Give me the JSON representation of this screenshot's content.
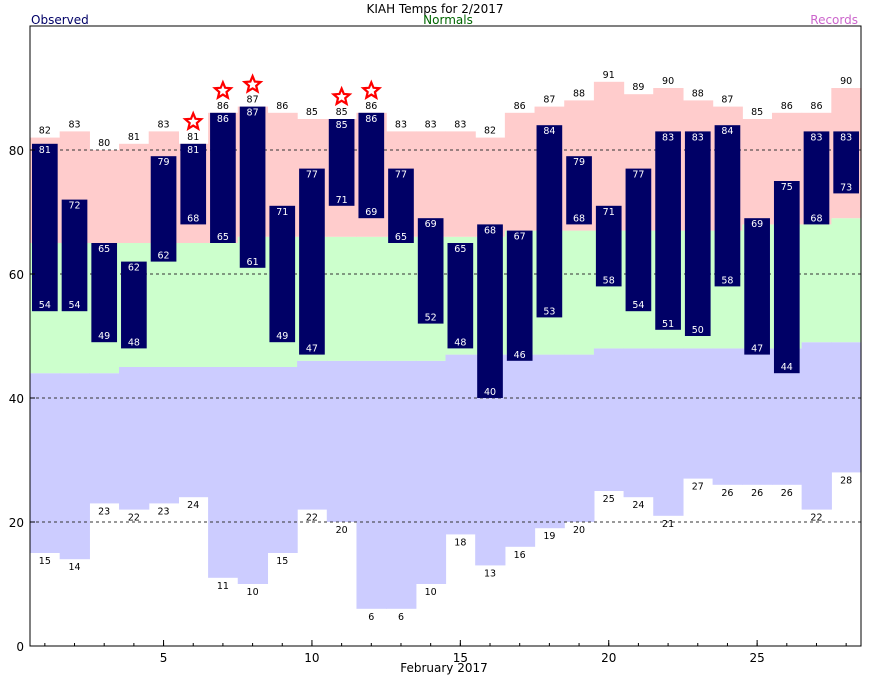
{
  "chart_data": {
    "type": "bar",
    "title": "KIAH Temps for 2/2017",
    "legend": {
      "observed": "Observed",
      "normals": "Normals",
      "records": "Records"
    },
    "xlabel": "February 2017",
    "ylabel": "",
    "xlim": [
      0.5,
      28.5
    ],
    "ylim": [
      0,
      100
    ],
    "x_ticks": [
      5,
      10,
      15,
      20,
      25
    ],
    "y_ticks": [
      0,
      20,
      40,
      60,
      80
    ],
    "gridlines_y": [
      20,
      40,
      60,
      80
    ],
    "colors": {
      "observed": "#000066",
      "normal_band": "#ccffcc",
      "record_high_band": "#ffcccc",
      "record_low_band": "#ccccff",
      "star": "#ff0000",
      "observed_text": "#000066",
      "normals_text": "#006600",
      "records_text": "#cc66cc"
    },
    "days": [
      1,
      2,
      3,
      4,
      5,
      6,
      7,
      8,
      9,
      10,
      11,
      12,
      13,
      14,
      15,
      16,
      17,
      18,
      19,
      20,
      21,
      22,
      23,
      24,
      25,
      26,
      27,
      28
    ],
    "obs_high": [
      81,
      72,
      65,
      62,
      79,
      81,
      86,
      87,
      71,
      77,
      85,
      86,
      77,
      69,
      65,
      68,
      67,
      84,
      79,
      71,
      77,
      83,
      83,
      84,
      69,
      75,
      83,
      83
    ],
    "obs_low": [
      54,
      54,
      49,
      48,
      62,
      68,
      65,
      61,
      49,
      47,
      71,
      69,
      65,
      52,
      48,
      40,
      46,
      53,
      68,
      58,
      54,
      51,
      50,
      58,
      47,
      44,
      68,
      73
    ],
    "normal_high": [
      65,
      65,
      65,
      65,
      65,
      65,
      65,
      66,
      66,
      66,
      66,
      66,
      66,
      66,
      66,
      66,
      67,
      67,
      67,
      67,
      67,
      67,
      67,
      67,
      68,
      68,
      68,
      69
    ],
    "normal_low": [
      44,
      44,
      44,
      45,
      45,
      45,
      45,
      45,
      45,
      46,
      46,
      46,
      46,
      46,
      47,
      47,
      47,
      47,
      47,
      48,
      48,
      48,
      48,
      48,
      48,
      48,
      49,
      49
    ],
    "record_high": [
      82,
      83,
      80,
      81,
      83,
      81,
      86,
      87,
      86,
      85,
      85,
      86,
      83,
      83,
      83,
      82,
      86,
      87,
      88,
      91,
      89,
      90,
      88,
      87,
      85,
      86,
      86,
      90
    ],
    "record_low": [
      15,
      14,
      23,
      22,
      23,
      24,
      11,
      10,
      15,
      22,
      20,
      6,
      6,
      10,
      18,
      13,
      16,
      19,
      20,
      25,
      24,
      21,
      27,
      26,
      26,
      26,
      22,
      28
    ],
    "record_set_high_days": [
      6,
      7,
      8,
      11,
      12
    ],
    "note_star": "star"
  }
}
